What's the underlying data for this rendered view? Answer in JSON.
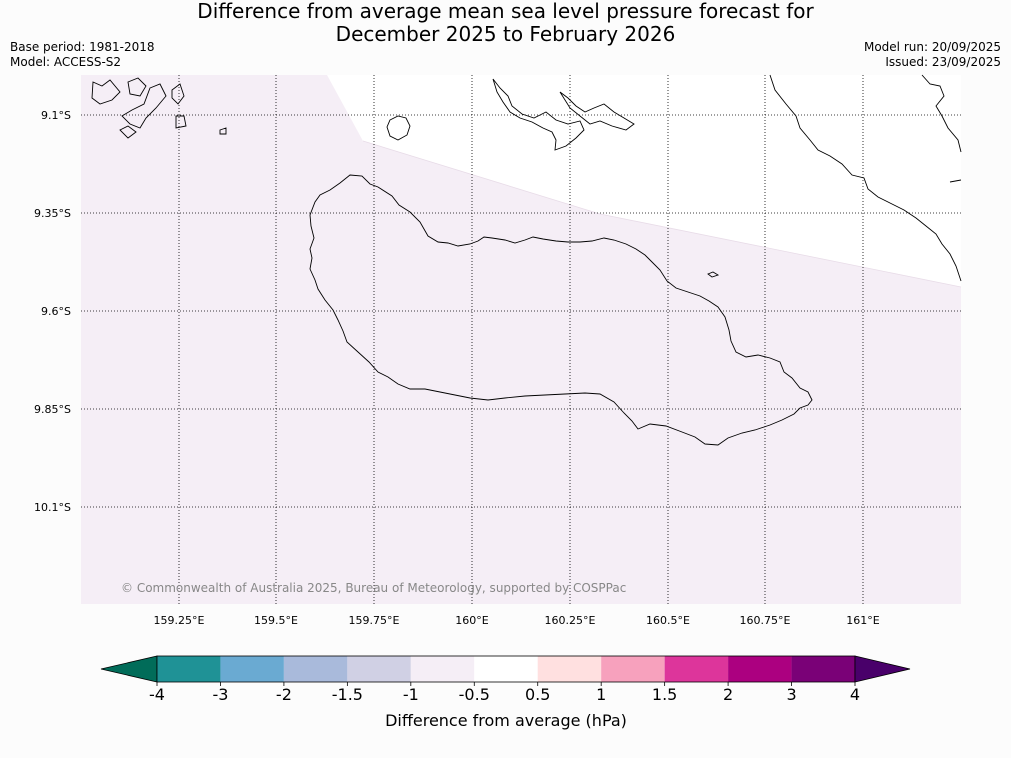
{
  "title": {
    "line1": "Difference from average mean sea level pressure forecast for",
    "line2": "December 2025 to February 2026"
  },
  "meta_left": {
    "base_period": "Base period: 1981-2018",
    "model": "Model: ACCESS-S2"
  },
  "meta_right": {
    "model_run": "Model run: 20/09/2025",
    "issued": "Issued: 23/09/2025"
  },
  "map": {
    "lat_labels": [
      "9.1°S",
      "9.35°S",
      "9.6°S",
      "9.85°S",
      "10.1°S"
    ],
    "lon_labels": [
      "159.25°E",
      "159.5°E",
      "159.75°E",
      "160°E",
      "160.25°E",
      "160.5°E",
      "160.75°E",
      "161°E"
    ],
    "copyright": "© Commonwealth of Australia 2025, Bureau of Meteorology, supported by COSPPac",
    "fill_category": "-1 to -0.5",
    "fill_color": "#f5eef6",
    "zero_color": "#ffffff",
    "coast_color": "#000000"
  },
  "colorbar": {
    "label": "Difference from average (hPa)",
    "ticks": [
      "-4",
      "-3",
      "-2",
      "-1.5",
      "-1",
      "-0.5",
      "0.5",
      "1",
      "1.5",
      "2",
      "3",
      "4"
    ],
    "colors": [
      "#1f9296",
      "#6aaad2",
      "#a9badb",
      "#d0d0e4",
      "#f5eef6",
      "#ffffff",
      "#ffe0e0",
      "#f7a1bd",
      "#dd359b",
      "#ac0080",
      "#7a0177"
    ],
    "under_color": "#016c59",
    "over_color": "#49006a"
  }
}
